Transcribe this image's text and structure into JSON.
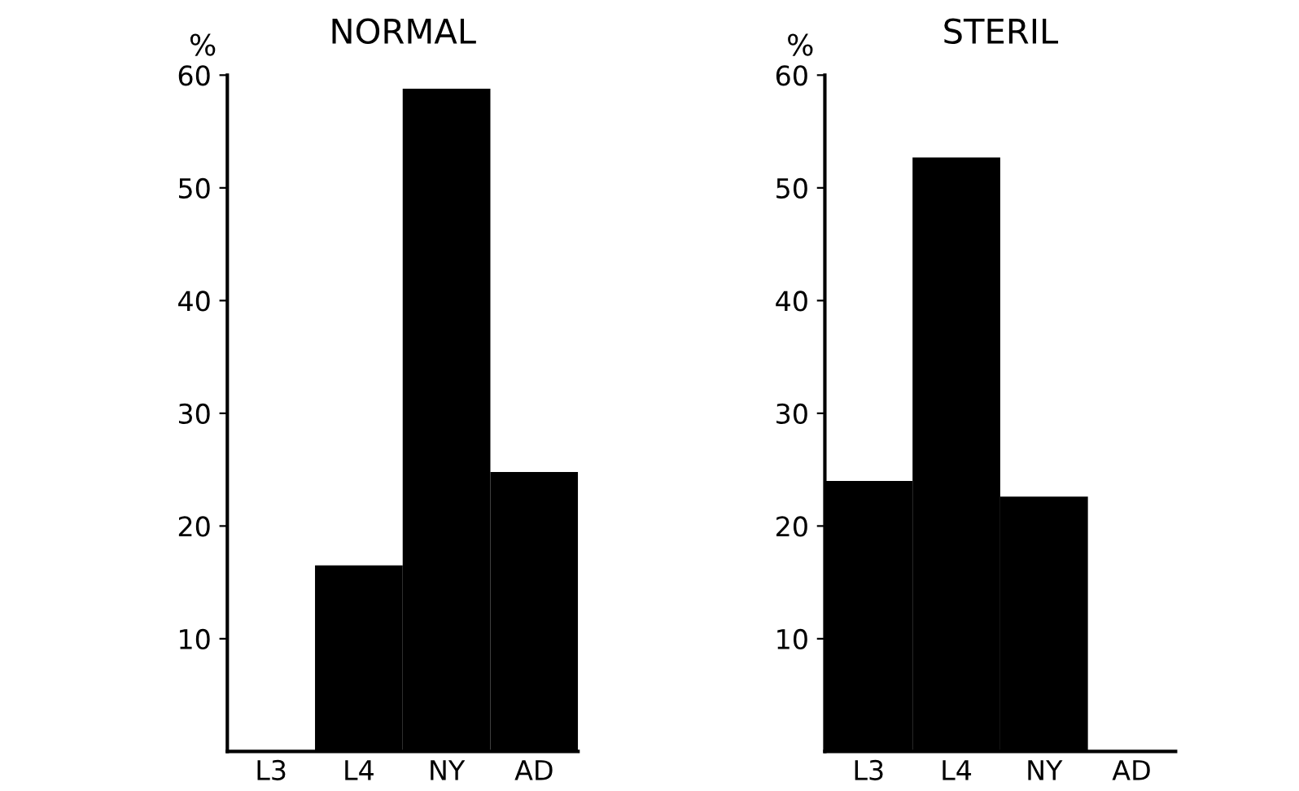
{
  "chart_data": [
    {
      "type": "bar",
      "title": "NORMAL",
      "ylabel": "%",
      "categories": [
        "L3",
        "L4",
        "NY",
        "AD"
      ],
      "values": [
        0,
        16.5,
        58.8,
        24.8
      ],
      "color": "#000000",
      "ylim": [
        0,
        60
      ],
      "yticks": [
        10,
        20,
        30,
        40,
        50,
        60
      ],
      "grid": false
    },
    {
      "type": "bar",
      "title": "STERIL",
      "ylabel": "%",
      "categories": [
        "L3",
        "L4",
        "NY",
        "AD"
      ],
      "values": [
        24.0,
        52.7,
        22.6,
        0
      ],
      "color": "#000000",
      "ylim": [
        0,
        60
      ],
      "yticks": [
        10,
        20,
        30,
        40,
        50,
        60
      ],
      "grid": false
    }
  ]
}
